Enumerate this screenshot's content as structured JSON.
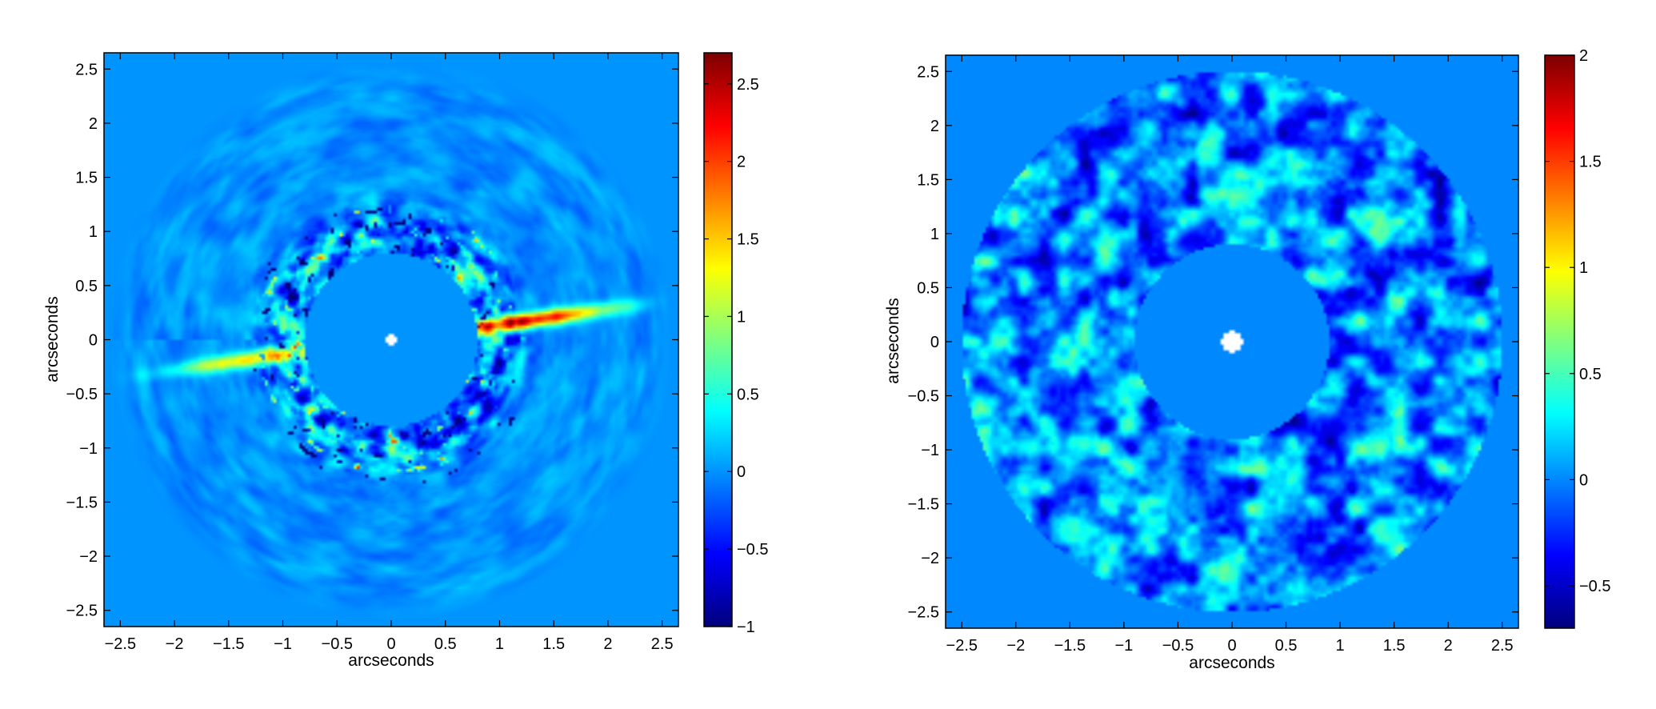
{
  "chart_data": [
    {
      "type": "heatmap",
      "description_ref": "left-panel",
      "xlabel": "arcseconds",
      "ylabel": "arcseconds",
      "xlim": [
        -2.65,
        2.65
      ],
      "ylim": [
        -2.65,
        2.65
      ],
      "xticks": [
        -2.5,
        -2,
        -1.5,
        -1,
        -0.5,
        0,
        0.5,
        1,
        1.5,
        2,
        2.5
      ],
      "yticks": [
        -2.5,
        -2,
        -1.5,
        -1,
        -0.5,
        0,
        0.5,
        1,
        1.5,
        2,
        2.5
      ],
      "colorbar": {
        "min": -1,
        "max": 2.7,
        "ticks": [
          -1,
          -0.5,
          0,
          0.5,
          1,
          1.5,
          2,
          2.5
        ],
        "colormap": "jet"
      },
      "features": {
        "inner_mask_radius": 0.8,
        "outer_radius": 2.6,
        "star_marker_radius": 0.05,
        "disk_position_angle_deg": 8,
        "disk_peak_value": 2.7,
        "background_value": 0.0
      },
      "grid": false
    },
    {
      "type": "heatmap",
      "description_ref": "right-panel",
      "xlabel": "arcseconds",
      "ylabel": "arcseconds",
      "xlim": [
        -2.65,
        2.65
      ],
      "ylim": [
        -2.65,
        2.65
      ],
      "xticks": [
        -2.5,
        -2,
        -1.5,
        -1,
        -0.5,
        0,
        0.5,
        1,
        1.5,
        2,
        2.5
      ],
      "yticks": [
        -2.5,
        -2,
        -1.5,
        -1,
        -0.5,
        0,
        0.5,
        1,
        1.5,
        2,
        2.5
      ],
      "colorbar": {
        "min": -0.7,
        "max": 2,
        "ticks": [
          -0.5,
          0,
          0.5,
          1,
          1.5,
          2
        ],
        "colormap": "jet"
      },
      "features": {
        "inner_mask_radius": 0.9,
        "outer_radius": 2.5,
        "star_marker_radius": 0.1,
        "background_value": 0.0
      },
      "grid": false
    }
  ]
}
